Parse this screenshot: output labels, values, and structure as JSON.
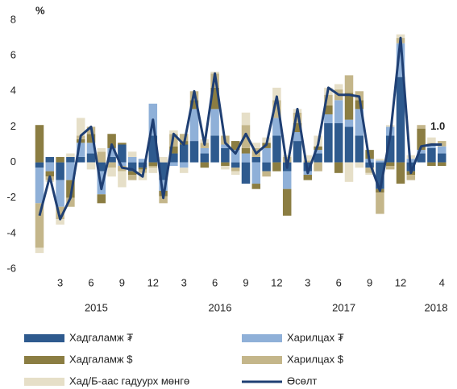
{
  "chart_data": {
    "type": "stacked_bar_line",
    "y_label": "%",
    "categories": [
      null,
      null,
      "3",
      null,
      null,
      "6",
      null,
      null,
      "9",
      null,
      null,
      "12",
      null,
      null,
      "3",
      null,
      null,
      "6",
      null,
      null,
      "9",
      null,
      null,
      "12",
      null,
      null,
      "3",
      null,
      null,
      "6",
      null,
      null,
      "9",
      null,
      null,
      "12",
      null,
      null,
      null,
      "4"
    ],
    "years": [
      "2015",
      "2016",
      "2017",
      "2018"
    ],
    "ylim": [
      -6,
      8
    ],
    "yticks": [
      -6,
      -4,
      -2,
      0,
      2,
      4,
      6,
      8
    ],
    "series": [
      {
        "name": "Хадгаламж ₮",
        "color": "#2e5a8e",
        "values": [
          -0.3,
          0.3,
          -1.0,
          0.3,
          0.3,
          0.5,
          -0.5,
          0.3,
          1.0,
          -0.5,
          -0.3,
          1.5,
          -1.0,
          0.5,
          1.0,
          1.2,
          0.5,
          1.5,
          0.8,
          -0.3,
          -1.2,
          0.3,
          -0.5,
          1.5,
          -0.5,
          1.2,
          -0.5,
          0.5,
          2.2,
          2.2,
          2.0,
          1.5,
          -0.3,
          -1.5,
          1.5,
          4.8,
          -0.5,
          0.5,
          0.8,
          0.5
        ]
      },
      {
        "name": "Харилцах ₮",
        "color": "#8fb0d8",
        "values": [
          -2.0,
          -0.5,
          -1.5,
          -1.0,
          0.8,
          0.6,
          -1.3,
          0.5,
          -0.2,
          0.3,
          0.2,
          1.8,
          -0.6,
          -0.2,
          -0.3,
          1.8,
          0.3,
          1.5,
          0.2,
          0.7,
          0.5,
          -1.2,
          0.8,
          1.0,
          -1.0,
          0.5,
          -0.2,
          0.2,
          0.5,
          1.3,
          0.4,
          1.5,
          0.2,
          0.1,
          0.5,
          1.9,
          0.2,
          0.2,
          0.2,
          0.4
        ]
      },
      {
        "name": "Хадгаламж $",
        "color": "#8b7d42",
        "values": [
          2.1,
          -0.3,
          0.3,
          -1.0,
          0.2,
          0.5,
          -0.5,
          0.8,
          0.1,
          -0.2,
          -0.1,
          -0.2,
          -0.3,
          0.4,
          0.2,
          0.5,
          -0.3,
          1.2,
          -0.2,
          0.5,
          0.3,
          -0.3,
          0.3,
          -0.5,
          -1.5,
          0.5,
          -0.3,
          0.2,
          0.5,
          -0.6,
          1.5,
          0.5,
          0.5,
          -0.2,
          -0.2,
          -1.2,
          -0.2,
          1.2,
          -0.2,
          -0.2
        ]
      },
      {
        "name": "Харилцах $",
        "color": "#c4b68a",
        "values": [
          -2.5,
          -0.2,
          -0.7,
          -0.5,
          0.2,
          0.4,
          0.6,
          -0.3,
          -0.3,
          -0.3,
          -0.2,
          -0.1,
          -0.4,
          0.7,
          0.4,
          0.5,
          0.3,
          0.8,
          0.5,
          -0.2,
          1.3,
          0.5,
          -0.3,
          1.0,
          0.3,
          0.6,
          0.1,
          -0.5,
          0.6,
          0.6,
          1.0,
          0.5,
          -0.3,
          -1.2,
          -0.2,
          0.3,
          -0.3,
          0.2,
          0.1,
          0.3
        ]
      },
      {
        "name": "Хад/Б-аас гадуурх мөнгө",
        "color": "#e6dfc8",
        "values": [
          -0.3,
          -0.1,
          -0.3,
          0.2,
          1.0,
          -0.4,
          0.2,
          -0.5,
          -0.9,
          0.3,
          -0.4,
          -0.3,
          0.3,
          0.2,
          -0.3,
          0,
          0.2,
          0.1,
          -0.2,
          -0.2,
          0.7,
          0.3,
          0.3,
          0.7,
          0.1,
          0.2,
          0.3,
          0.6,
          0.4,
          0.3,
          -1.1,
          -0.3,
          -0.1,
          0.1,
          0.1,
          0.2,
          0.2,
          0,
          0.3,
          0
        ]
      },
      {
        "name": "Өсөлт",
        "color": "#1f3f73",
        "kind": "line",
        "values": [
          -3.0,
          -0.8,
          -3.2,
          -2.0,
          1.5,
          2.0,
          -1.5,
          1.0,
          -0.3,
          -0.4,
          -0.8,
          2.4,
          -2.0,
          1.6,
          1.0,
          4.0,
          1.0,
          5.0,
          1.1,
          0.5,
          1.6,
          0.5,
          1.0,
          3.7,
          -0.3,
          3.0,
          -0.6,
          1.0,
          4.2,
          3.8,
          3.8,
          3.7,
          0.0,
          -1.6,
          1.5,
          7.0,
          -0.6,
          0.9,
          1.0,
          1.0
        ],
        "value_labels": [
          null,
          null,
          null,
          null,
          null,
          null,
          null,
          null,
          null,
          null,
          null,
          null,
          null,
          null,
          null,
          null,
          null,
          null,
          null,
          null,
          null,
          null,
          null,
          null,
          null,
          null,
          null,
          null,
          null,
          null,
          null,
          null,
          null,
          null,
          null,
          null,
          null,
          null,
          null,
          "1.0"
        ]
      }
    ]
  }
}
